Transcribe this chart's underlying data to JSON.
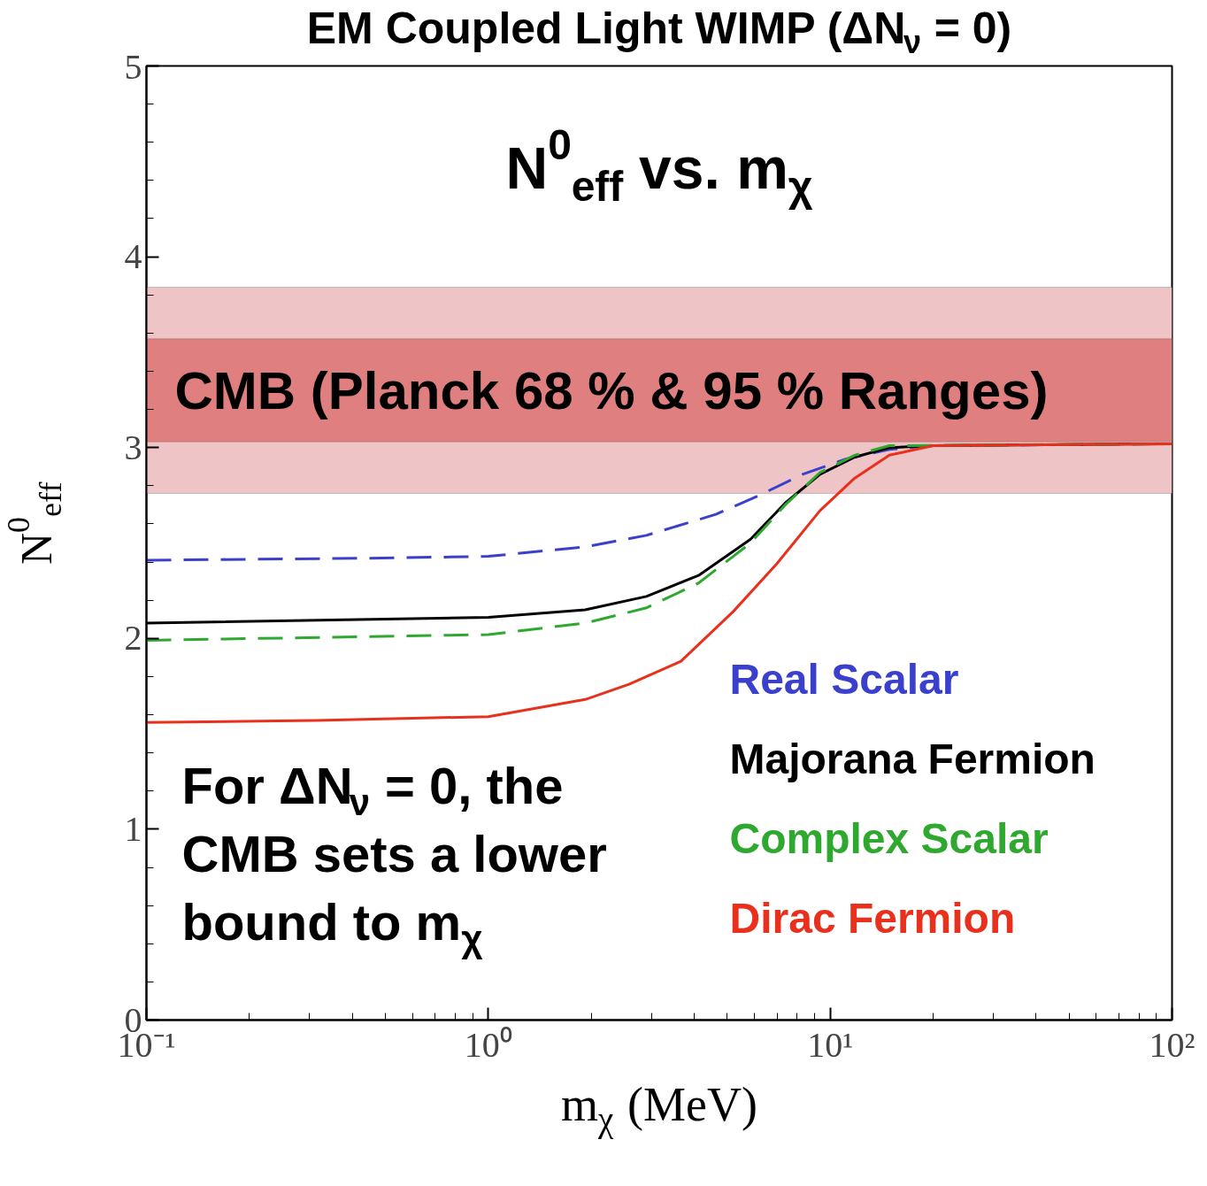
{
  "chart_data": {
    "type": "line",
    "title": "EM Coupled Light WIMP (ΔN$_{ν}$ = 0)",
    "subtitle": "N$^{0}$$_{eff}$ vs. m$_{χ}$",
    "xlabel": "m$_{χ}$ (MeV)",
    "ylabel": "N$^{0}$$_{eff}$",
    "log": "x",
    "xlim": [
      0.1,
      100
    ],
    "ylim": [
      0,
      5
    ],
    "xticks": [
      {
        "value": 0.1,
        "label": "10⁻¹"
      },
      {
        "value": 1,
        "label": "10⁰"
      },
      {
        "value": 10,
        "label": "10¹"
      },
      {
        "value": 100,
        "label": "10²"
      }
    ],
    "yticks": [
      0,
      1,
      2,
      3,
      4,
      5
    ],
    "grid": false,
    "legend": "bottom right",
    "bands": [
      {
        "axis": "y",
        "from": 2.76,
        "to": 3.84,
        "color": "#efc4c6"
      },
      {
        "axis": "y",
        "from": 3.03,
        "to": 3.57,
        "color": "#e07f80",
        "label": "CMB (Planck 68 % & 95 % Ranges)"
      }
    ],
    "annotations": [
      "For ΔN$_{ν}$ = 0, the\nCMB sets a lower\nbound to m$_{χ}$"
    ],
    "series": [
      {
        "name": "Real Scalar",
        "color": "#3a3fcc",
        "line_style": "dashed",
        "x": [
          0.1,
          0.445,
          1.0,
          1.92,
          2.9,
          4.63,
          6.2,
          8.31,
          11.1,
          14.9,
          20.0,
          100
        ],
        "values": [
          2.41,
          2.42,
          2.43,
          2.48,
          2.54,
          2.65,
          2.75,
          2.86,
          2.94,
          2.99,
          3.01,
          3.02
        ]
      },
      {
        "name": "Majorana Fermion",
        "color": "#000000",
        "line_style": "solid",
        "x": [
          0.1,
          1.0,
          1.92,
          2.9,
          4.12,
          5.85,
          7.39,
          9.34,
          11.8,
          14.9,
          20.0,
          100
        ],
        "values": [
          2.08,
          2.11,
          2.15,
          2.22,
          2.33,
          2.52,
          2.71,
          2.86,
          2.95,
          3.0,
          3.01,
          3.02
        ]
      },
      {
        "name": "Complex Scalar",
        "color": "#2fa82f",
        "line_style": "dashed",
        "x": [
          0.1,
          1.0,
          1.92,
          2.9,
          4.12,
          5.85,
          7.39,
          9.34,
          11.8,
          14.9,
          100
        ],
        "values": [
          1.99,
          2.02,
          2.08,
          2.16,
          2.29,
          2.5,
          2.7,
          2.87,
          2.96,
          3.01,
          3.02
        ]
      },
      {
        "name": "Dirac Fermion",
        "color": "#e8301c",
        "line_style": "solid",
        "x": [
          0.1,
          0.313,
          1.0,
          1.92,
          2.58,
          3.66,
          5.2,
          6.97,
          9.34,
          11.8,
          14.9,
          20.0,
          100
        ],
        "values": [
          1.56,
          1.57,
          1.59,
          1.68,
          1.76,
          1.88,
          2.14,
          2.39,
          2.67,
          2.84,
          2.96,
          3.01,
          3.02
        ]
      }
    ]
  }
}
